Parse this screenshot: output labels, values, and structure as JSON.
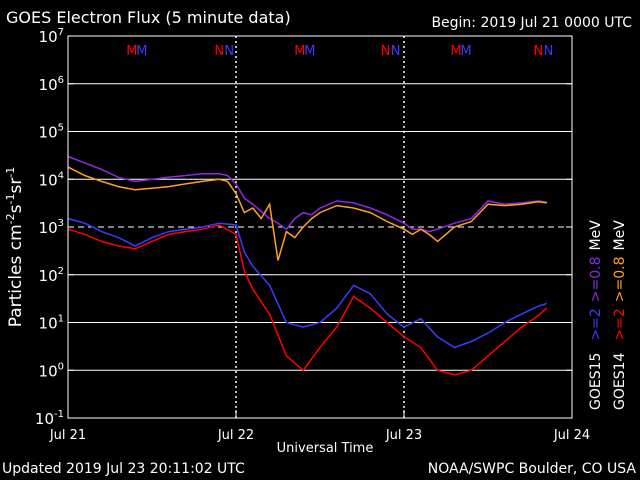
{
  "header": {
    "title": "GOES Electron Flux (5 minute data)",
    "begin": "Begin: 2019 Jul 21 0000 UTC"
  },
  "footer": {
    "updated": "Updated 2019 Jul 23 20:11:02 UTC",
    "credit": "NOAA/SWPC Boulder, CO USA"
  },
  "chart_data": {
    "type": "line",
    "title": "GOES Electron Flux (5 minute data)",
    "xlabel": "Universal Time",
    "ylabel_main": "Particles cm",
    "ylabel_sup1": "-2",
    "ylabel_mid1": "s",
    "ylabel_sup2": "-1",
    "ylabel_mid2": "sr",
    "ylabel_sup3": "-1",
    "y_scale": "log",
    "ylim": [
      0.1,
      10000000.0
    ],
    "xlim": [
      0,
      3
    ],
    "x_ticks": [
      {
        "pos": 0,
        "label": "Jul 21"
      },
      {
        "pos": 1,
        "label": "Jul 22"
      },
      {
        "pos": 2,
        "label": "Jul 23"
      },
      {
        "pos": 3,
        "label": "Jul 24"
      }
    ],
    "y_ticks": [
      {
        "exp": 7,
        "base": "10",
        "sup": "7"
      },
      {
        "exp": 6,
        "base": "10",
        "sup": "6"
      },
      {
        "exp": 5,
        "base": "10",
        "sup": "5"
      },
      {
        "exp": 4,
        "base": "10",
        "sup": "4"
      },
      {
        "exp": 3,
        "base": "10",
        "sup": "3"
      },
      {
        "exp": 2,
        "base": "10",
        "sup": "2"
      },
      {
        "exp": 1,
        "base": "10",
        "sup": "1"
      },
      {
        "exp": 0,
        "base": "10",
        "sup": "0"
      },
      {
        "exp": -1,
        "base": "10",
        "sup": "-1"
      }
    ],
    "grid": true,
    "threshold": {
      "value": 1000,
      "style": "dashed"
    },
    "day_markers": [
      1,
      2
    ],
    "markers": [
      {
        "x": 0.38,
        "label": "M",
        "color": "#ff0000"
      },
      {
        "x": 0.44,
        "label": "M",
        "color": "#3b3bff"
      },
      {
        "x": 0.9,
        "label": "N",
        "color": "#ff0000"
      },
      {
        "x": 0.96,
        "label": "N",
        "color": "#3b3bff"
      },
      {
        "x": 1.38,
        "label": "M",
        "color": "#ff0000"
      },
      {
        "x": 1.44,
        "label": "M",
        "color": "#3b3bff"
      },
      {
        "x": 1.89,
        "label": "N",
        "color": "#ff0000"
      },
      {
        "x": 1.95,
        "label": "N",
        "color": "#3b3bff"
      },
      {
        "x": 2.31,
        "label": "M",
        "color": "#ff0000"
      },
      {
        "x": 2.37,
        "label": "M",
        "color": "#3b3bff"
      },
      {
        "x": 2.8,
        "label": "N",
        "color": "#ff0000"
      },
      {
        "x": 2.86,
        "label": "N",
        "color": "#3b3bff"
      }
    ],
    "legend": {
      "placement": "right",
      "columns": [
        {
          "name": "GOES15",
          "entries": [
            {
              "text": ">=2",
              "color": "#3b3bff"
            },
            {
              "text": ">=0.8",
              "color": "#8a2be2"
            },
            {
              "text": "MeV",
              "color": "#ffffff"
            }
          ]
        },
        {
          "name": "GOES14",
          "entries": [
            {
              "text": ">=2",
              "color": "#ff0000"
            },
            {
              "text": ">=0.8",
              "color": "#ffa020"
            },
            {
              "text": "MeV",
              "color": "#ffffff"
            }
          ]
        }
      ]
    },
    "series": [
      {
        "name": "GOES15 >=0.8 MeV",
        "color": "#8a2be2",
        "x": [
          0,
          0.1,
          0.2,
          0.3,
          0.4,
          0.5,
          0.6,
          0.7,
          0.8,
          0.9,
          0.95,
          1.0,
          1.05,
          1.1,
          1.2,
          1.25,
          1.3,
          1.35,
          1.4,
          1.45,
          1.5,
          1.6,
          1.7,
          1.8,
          1.9,
          2.0,
          2.05,
          2.1,
          2.15,
          2.2,
          2.3,
          2.4,
          2.5,
          2.6,
          2.7,
          2.8,
          2.85
        ],
        "y": [
          30000,
          22000,
          16000,
          11000,
          9000,
          10000,
          11000,
          12000,
          13000,
          13000,
          12000,
          8000,
          4000,
          3000,
          1500,
          1200,
          900,
          1500,
          2000,
          1800,
          2500,
          3500,
          3200,
          2500,
          1800,
          1200,
          900,
          900,
          800,
          900,
          1200,
          1500,
          3500,
          3000,
          3200,
          3500,
          3300
        ]
      },
      {
        "name": "GOES14 >=0.8 MeV",
        "color": "#ffa020",
        "x": [
          0,
          0.1,
          0.2,
          0.3,
          0.4,
          0.5,
          0.6,
          0.7,
          0.8,
          0.9,
          0.95,
          1.0,
          1.05,
          1.1,
          1.15,
          1.2,
          1.25,
          1.3,
          1.35,
          1.4,
          1.45,
          1.5,
          1.6,
          1.7,
          1.8,
          1.9,
          2.0,
          2.05,
          2.1,
          2.15,
          2.2,
          2.3,
          2.4,
          2.5,
          2.6,
          2.7,
          2.8,
          2.85
        ],
        "y": [
          18000,
          12000,
          9000,
          7000,
          6000,
          6500,
          7000,
          8000,
          9000,
          10000,
          9000,
          5000,
          2000,
          2500,
          1500,
          3000,
          200,
          800,
          600,
          1000,
          1500,
          2000,
          2800,
          2500,
          2000,
          1300,
          900,
          700,
          900,
          700,
          500,
          1000,
          1300,
          3000,
          2800,
          3000,
          3400,
          3200
        ]
      },
      {
        "name": "GOES15 >=2 MeV",
        "color": "#3b3bff",
        "x": [
          0,
          0.1,
          0.2,
          0.3,
          0.4,
          0.5,
          0.6,
          0.7,
          0.8,
          0.9,
          1.0,
          1.05,
          1.1,
          1.2,
          1.3,
          1.4,
          1.5,
          1.6,
          1.7,
          1.8,
          1.9,
          2.0,
          2.1,
          2.2,
          2.3,
          2.4,
          2.5,
          2.6,
          2.7,
          2.8,
          2.85
        ],
        "y": [
          1500,
          1200,
          800,
          600,
          400,
          600,
          800,
          900,
          1000,
          1200,
          1100,
          300,
          150,
          60,
          10,
          8,
          10,
          20,
          60,
          40,
          15,
          8,
          12,
          5,
          3,
          4,
          6,
          10,
          15,
          22,
          25
        ]
      },
      {
        "name": "GOES14 >=2 MeV",
        "color": "#ff0000",
        "x": [
          0,
          0.1,
          0.2,
          0.3,
          0.4,
          0.5,
          0.6,
          0.7,
          0.8,
          0.9,
          1.0,
          1.05,
          1.1,
          1.2,
          1.3,
          1.4,
          1.5,
          1.6,
          1.7,
          1.8,
          1.9,
          2.0,
          2.1,
          2.2,
          2.3,
          2.4,
          2.5,
          2.6,
          2.7,
          2.8,
          2.85
        ],
        "y": [
          900,
          700,
          500,
          400,
          350,
          500,
          700,
          800,
          900,
          1100,
          700,
          120,
          50,
          15,
          2,
          1,
          3,
          8,
          35,
          20,
          10,
          5,
          3,
          1,
          0.8,
          1,
          2,
          4,
          8,
          14,
          20
        ]
      }
    ]
  }
}
